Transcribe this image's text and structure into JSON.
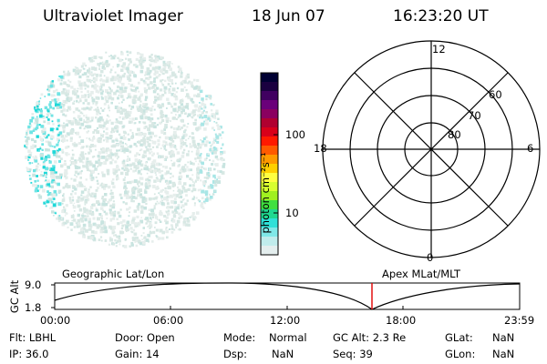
{
  "header": {
    "title": "Ultraviolet Imager",
    "date": "18 Jun 07",
    "time": "16:23:20 UT"
  },
  "colorbar": {
    "unit": "photon cm⁻²s⁻¹",
    "tick_100": "100",
    "tick_10": "10",
    "colors": [
      "#000033",
      "#1a0040",
      "#400060",
      "#6a007a",
      "#8a0060",
      "#b00030",
      "#d8001a",
      "#ff1a00",
      "#ff5a00",
      "#ff9a00",
      "#ffd000",
      "#ffff40",
      "#d8ff30",
      "#a0f020",
      "#40e040",
      "#20d890",
      "#30e0d8",
      "#80e8e8",
      "#c0ecec",
      "#e4eeee"
    ]
  },
  "polar": {
    "label_12": "12",
    "label_18": "18",
    "label_6": "6",
    "label_0": "0",
    "label_60": "60",
    "label_70": "70",
    "label_80": "80"
  },
  "timeline": {
    "left_label": "Geographic Lat/Lon",
    "right_label": "Apex MLat/MLT",
    "y_axis": "GC Alt",
    "y_top": "9.0",
    "y_bottom": "1.8",
    "ticks": [
      "00:00",
      "06:00",
      "12:00",
      "18:00",
      "23:59"
    ],
    "marker_color": "#e00000"
  },
  "status": {
    "flt": "Flt: LBHL",
    "ip": "IP: 36.0",
    "door": "Door: Open",
    "gain": "Gain: 14",
    "mode_label": "Mode:",
    "mode_value": "Normal",
    "dsp_label": "Dsp:",
    "dsp_value": "NaN",
    "gcalt": "GC Alt: 2.3 Re",
    "seq": "Seq: 39",
    "glat_label": "GLat:",
    "glat_value": "NaN",
    "glon_label": "GLon:",
    "glon_value": "NaN"
  }
}
